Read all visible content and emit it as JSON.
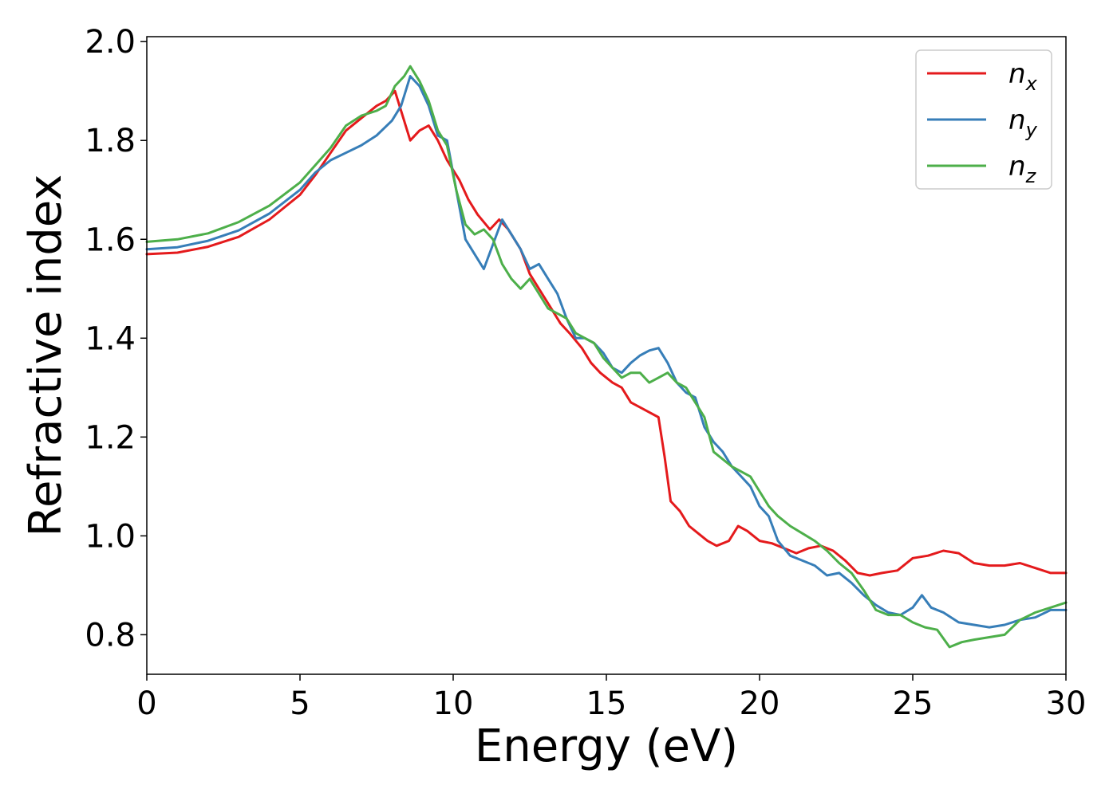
{
  "chart_data": {
    "type": "line",
    "title": "",
    "xlabel": "Energy (eV)",
    "ylabel": "Refractive index",
    "xlim": [
      0,
      30
    ],
    "ylim": [
      0.72,
      2.01
    ],
    "xticks": [
      0,
      5,
      10,
      15,
      20,
      25,
      30
    ],
    "xtick_labels": [
      "0",
      "5",
      "10",
      "15",
      "20",
      "25",
      "30"
    ],
    "yticks": [
      0.8,
      1.0,
      1.2,
      1.4,
      1.6,
      1.8,
      2.0
    ],
    "ytick_labels": [
      "0.8",
      "1.0",
      "1.2",
      "1.4",
      "1.6",
      "1.8",
      "2.0"
    ],
    "grid": false,
    "legend_position": "top-right",
    "series": [
      {
        "name": "n",
        "subscript": "x",
        "color": "#e41a1c",
        "points": [
          [
            0,
            1.57
          ],
          [
            1,
            1.573
          ],
          [
            2,
            1.585
          ],
          [
            3,
            1.605
          ],
          [
            4,
            1.64
          ],
          [
            5,
            1.69
          ],
          [
            5.5,
            1.73
          ],
          [
            6,
            1.775
          ],
          [
            6.5,
            1.82
          ],
          [
            7,
            1.845
          ],
          [
            7.5,
            1.87
          ],
          [
            7.8,
            1.88
          ],
          [
            8.1,
            1.9
          ],
          [
            8.3,
            1.86
          ],
          [
            8.6,
            1.8
          ],
          [
            8.9,
            1.82
          ],
          [
            9.2,
            1.83
          ],
          [
            9.5,
            1.8
          ],
          [
            9.8,
            1.76
          ],
          [
            10.2,
            1.72
          ],
          [
            10.5,
            1.68
          ],
          [
            10.8,
            1.65
          ],
          [
            11.2,
            1.62
          ],
          [
            11.5,
            1.64
          ],
          [
            11.8,
            1.62
          ],
          [
            12.2,
            1.58
          ],
          [
            12.5,
            1.53
          ],
          [
            12.8,
            1.5
          ],
          [
            13.2,
            1.46
          ],
          [
            13.5,
            1.43
          ],
          [
            13.8,
            1.41
          ],
          [
            14.2,
            1.38
          ],
          [
            14.5,
            1.35
          ],
          [
            14.8,
            1.33
          ],
          [
            15.2,
            1.31
          ],
          [
            15.5,
            1.3
          ],
          [
            15.8,
            1.27
          ],
          [
            16.1,
            1.26
          ],
          [
            16.4,
            1.25
          ],
          [
            16.7,
            1.24
          ],
          [
            16.9,
            1.16
          ],
          [
            17.1,
            1.07
          ],
          [
            17.4,
            1.05
          ],
          [
            17.7,
            1.02
          ],
          [
            18,
            1.005
          ],
          [
            18.3,
            0.99
          ],
          [
            18.6,
            0.98
          ],
          [
            19,
            0.99
          ],
          [
            19.3,
            1.02
          ],
          [
            19.6,
            1.01
          ],
          [
            20,
            0.99
          ],
          [
            20.4,
            0.985
          ],
          [
            20.8,
            0.975
          ],
          [
            21.2,
            0.965
          ],
          [
            21.6,
            0.975
          ],
          [
            22,
            0.98
          ],
          [
            22.4,
            0.97
          ],
          [
            22.8,
            0.95
          ],
          [
            23.2,
            0.925
          ],
          [
            23.6,
            0.92
          ],
          [
            24,
            0.925
          ],
          [
            24.5,
            0.93
          ],
          [
            25,
            0.955
          ],
          [
            25.5,
            0.96
          ],
          [
            26,
            0.97
          ],
          [
            26.5,
            0.965
          ],
          [
            27,
            0.945
          ],
          [
            27.5,
            0.94
          ],
          [
            28,
            0.94
          ],
          [
            28.5,
            0.945
          ],
          [
            29,
            0.935
          ],
          [
            29.5,
            0.925
          ],
          [
            30,
            0.925
          ]
        ]
      },
      {
        "name": "n",
        "subscript": "y",
        "color": "#377eb8",
        "points": [
          [
            0,
            1.58
          ],
          [
            1,
            1.584
          ],
          [
            2,
            1.597
          ],
          [
            3,
            1.618
          ],
          [
            4,
            1.652
          ],
          [
            5,
            1.7
          ],
          [
            5.5,
            1.735
          ],
          [
            6,
            1.76
          ],
          [
            6.5,
            1.775
          ],
          [
            7,
            1.79
          ],
          [
            7.5,
            1.81
          ],
          [
            8,
            1.84
          ],
          [
            8.3,
            1.87
          ],
          [
            8.6,
            1.93
          ],
          [
            8.9,
            1.91
          ],
          [
            9.2,
            1.87
          ],
          [
            9.5,
            1.81
          ],
          [
            9.8,
            1.8
          ],
          [
            10.1,
            1.7
          ],
          [
            10.4,
            1.6
          ],
          [
            10.7,
            1.57
          ],
          [
            11,
            1.54
          ],
          [
            11.3,
            1.59
          ],
          [
            11.6,
            1.64
          ],
          [
            11.9,
            1.61
          ],
          [
            12.2,
            1.58
          ],
          [
            12.5,
            1.54
          ],
          [
            12.8,
            1.55
          ],
          [
            13.1,
            1.52
          ],
          [
            13.4,
            1.49
          ],
          [
            13.7,
            1.44
          ],
          [
            14,
            1.4
          ],
          [
            14.3,
            1.4
          ],
          [
            14.6,
            1.39
          ],
          [
            14.9,
            1.37
          ],
          [
            15.2,
            1.34
          ],
          [
            15.5,
            1.33
          ],
          [
            15.8,
            1.35
          ],
          [
            16.1,
            1.365
          ],
          [
            16.4,
            1.375
          ],
          [
            16.7,
            1.38
          ],
          [
            17,
            1.35
          ],
          [
            17.3,
            1.31
          ],
          [
            17.6,
            1.29
          ],
          [
            17.9,
            1.28
          ],
          [
            18.2,
            1.22
          ],
          [
            18.5,
            1.19
          ],
          [
            18.8,
            1.17
          ],
          [
            19.1,
            1.14
          ],
          [
            19.4,
            1.12
          ],
          [
            19.7,
            1.1
          ],
          [
            20,
            1.06
          ],
          [
            20.3,
            1.04
          ],
          [
            20.6,
            0.99
          ],
          [
            21,
            0.96
          ],
          [
            21.4,
            0.95
          ],
          [
            21.8,
            0.94
          ],
          [
            22.2,
            0.92
          ],
          [
            22.6,
            0.925
          ],
          [
            23,
            0.905
          ],
          [
            23.4,
            0.88
          ],
          [
            23.8,
            0.86
          ],
          [
            24.2,
            0.845
          ],
          [
            24.6,
            0.84
          ],
          [
            25,
            0.855
          ],
          [
            25.3,
            0.88
          ],
          [
            25.6,
            0.855
          ],
          [
            26,
            0.845
          ],
          [
            26.5,
            0.825
          ],
          [
            27,
            0.82
          ],
          [
            27.5,
            0.815
          ],
          [
            28,
            0.82
          ],
          [
            28.5,
            0.83
          ],
          [
            29,
            0.835
          ],
          [
            29.5,
            0.85
          ],
          [
            30,
            0.85
          ]
        ]
      },
      {
        "name": "n",
        "subscript": "z",
        "color": "#4daf4a",
        "points": [
          [
            0,
            1.595
          ],
          [
            1,
            1.6
          ],
          [
            2,
            1.612
          ],
          [
            3,
            1.635
          ],
          [
            4,
            1.668
          ],
          [
            5,
            1.715
          ],
          [
            5.5,
            1.75
          ],
          [
            6,
            1.785
          ],
          [
            6.5,
            1.83
          ],
          [
            7,
            1.85
          ],
          [
            7.5,
            1.86
          ],
          [
            7.8,
            1.87
          ],
          [
            8.1,
            1.91
          ],
          [
            8.4,
            1.93
          ],
          [
            8.6,
            1.95
          ],
          [
            8.9,
            1.92
          ],
          [
            9.2,
            1.88
          ],
          [
            9.5,
            1.82
          ],
          [
            9.8,
            1.79
          ],
          [
            10.1,
            1.7
          ],
          [
            10.4,
            1.63
          ],
          [
            10.7,
            1.61
          ],
          [
            11,
            1.62
          ],
          [
            11.3,
            1.6
          ],
          [
            11.6,
            1.55
          ],
          [
            11.9,
            1.52
          ],
          [
            12.2,
            1.5
          ],
          [
            12.5,
            1.52
          ],
          [
            12.8,
            1.49
          ],
          [
            13.1,
            1.46
          ],
          [
            13.4,
            1.45
          ],
          [
            13.7,
            1.44
          ],
          [
            14,
            1.41
          ],
          [
            14.3,
            1.4
          ],
          [
            14.6,
            1.39
          ],
          [
            14.9,
            1.36
          ],
          [
            15.2,
            1.34
          ],
          [
            15.5,
            1.32
          ],
          [
            15.8,
            1.33
          ],
          [
            16.1,
            1.33
          ],
          [
            16.4,
            1.31
          ],
          [
            16.7,
            1.32
          ],
          [
            17,
            1.33
          ],
          [
            17.3,
            1.31
          ],
          [
            17.6,
            1.3
          ],
          [
            17.9,
            1.27
          ],
          [
            18.2,
            1.24
          ],
          [
            18.5,
            1.17
          ],
          [
            18.8,
            1.155
          ],
          [
            19.1,
            1.14
          ],
          [
            19.4,
            1.13
          ],
          [
            19.7,
            1.12
          ],
          [
            20,
            1.09
          ],
          [
            20.3,
            1.06
          ],
          [
            20.6,
            1.04
          ],
          [
            21,
            1.02
          ],
          [
            21.4,
            1.005
          ],
          [
            21.8,
            0.99
          ],
          [
            22.2,
            0.97
          ],
          [
            22.6,
            0.945
          ],
          [
            23,
            0.925
          ],
          [
            23.4,
            0.89
          ],
          [
            23.8,
            0.85
          ],
          [
            24.2,
            0.84
          ],
          [
            24.6,
            0.84
          ],
          [
            25,
            0.825
          ],
          [
            25.4,
            0.815
          ],
          [
            25.8,
            0.81
          ],
          [
            26.2,
            0.775
          ],
          [
            26.6,
            0.785
          ],
          [
            27,
            0.79
          ],
          [
            27.5,
            0.795
          ],
          [
            28,
            0.8
          ],
          [
            28.5,
            0.83
          ],
          [
            29,
            0.845
          ],
          [
            29.5,
            0.855
          ],
          [
            30,
            0.865
          ]
        ]
      }
    ]
  }
}
